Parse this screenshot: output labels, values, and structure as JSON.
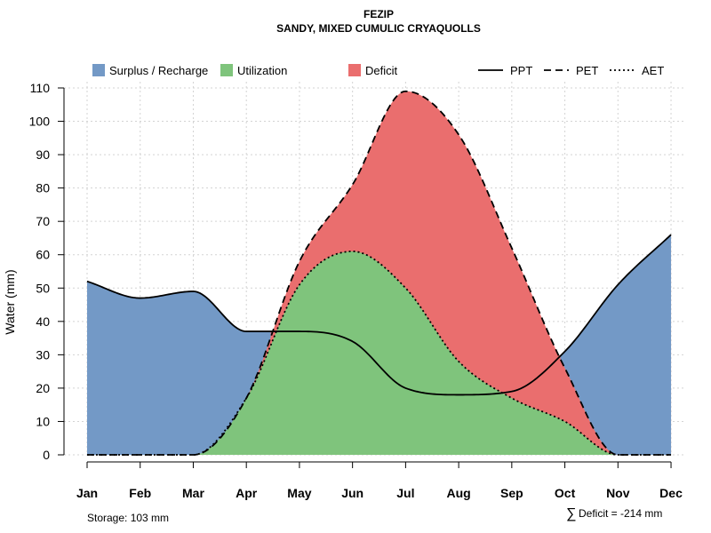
{
  "chart_data": {
    "type": "area",
    "title": "FEZIP",
    "subtitle": "SANDY, MIXED CUMULIC CRYAQUOLLS",
    "xlabel": "",
    "ylabel": "Water (mm)",
    "categories": [
      "Jan",
      "Feb",
      "Mar",
      "Apr",
      "May",
      "Jun",
      "Jul",
      "Aug",
      "Sep",
      "Oct",
      "Nov",
      "Dec"
    ],
    "ylim": [
      0,
      110
    ],
    "yticks": [
      0,
      10,
      20,
      30,
      40,
      50,
      60,
      70,
      80,
      90,
      100,
      110
    ],
    "grid": true,
    "legend": {
      "areas": [
        {
          "label": "Surplus / Recharge",
          "color": "#7399C6"
        },
        {
          "label": "Utilization",
          "color": "#7FC47C"
        },
        {
          "label": "Deficit",
          "color": "#EA6E6E"
        }
      ],
      "lines": [
        {
          "label": "PPT",
          "style": "solid"
        },
        {
          "label": "PET",
          "style": "dashed"
        },
        {
          "label": "AET",
          "style": "dotted"
        }
      ],
      "placement": "top"
    },
    "series": [
      {
        "name": "PPT",
        "values": [
          52,
          47,
          49,
          37,
          37,
          34,
          20,
          18,
          19,
          31,
          51,
          66
        ]
      },
      {
        "name": "PET",
        "values": [
          0,
          0,
          0,
          17,
          58,
          81,
          109,
          96,
          62,
          26,
          0,
          0
        ]
      },
      {
        "name": "AET",
        "values": [
          0,
          0,
          0,
          17,
          51,
          61,
          50,
          28,
          17,
          10,
          0,
          0
        ]
      }
    ],
    "annotations": {
      "storage": "Storage: 103 mm",
      "deficit_symbol": "∑",
      "deficit": "Deficit = -214 mm"
    }
  }
}
